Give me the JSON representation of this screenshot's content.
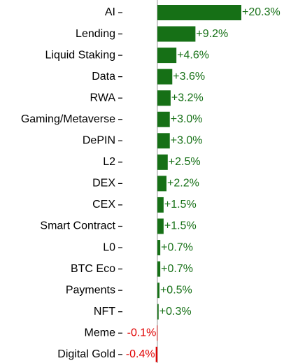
{
  "chart_data": {
    "type": "barh",
    "categories": [
      "AI",
      "Lending",
      "Liquid Staking",
      "Data",
      "RWA",
      "Gaming/Metaverse",
      "DePIN",
      "L2",
      "DEX",
      "CEX",
      "Smart Contract",
      "L0",
      "BTC Eco",
      "Payments",
      "NFT",
      "Meme",
      "Digital Gold"
    ],
    "values": [
      20.3,
      9.2,
      4.6,
      3.6,
      3.2,
      3.0,
      3.0,
      2.5,
      2.2,
      1.5,
      1.5,
      0.7,
      0.7,
      0.5,
      0.3,
      -0.1,
      -0.4
    ],
    "value_labels": [
      "+20.3%",
      "+9.2%",
      "+4.6%",
      "+3.6%",
      "+3.2%",
      "+3.0%",
      "+3.0%",
      "+2.5%",
      "+2.2%",
      "+1.5%",
      "+1.5%",
      "+0.7%",
      "+0.7%",
      "+0.5%",
      "+0.3%",
      "-0.1%",
      "-0.4%"
    ],
    "color": "#167016",
    "negative_color": "#e00000"
  }
}
